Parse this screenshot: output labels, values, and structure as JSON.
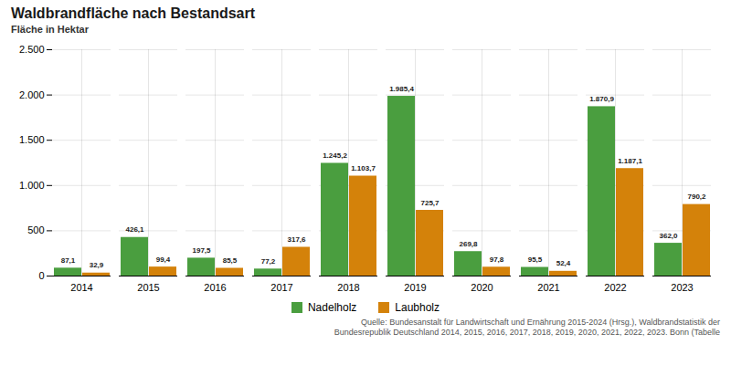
{
  "chart_data": {
    "type": "bar",
    "title": "Waldbrandfläche nach Bestandsart",
    "ylabel": "Fläche in Hektar",
    "caption": "Quelle: Bundesanstalt für Landwirtschaft und Ernährung 2015-2024 (Hrsg.), Waldbrandstatistik der\nBundesrepublik Deutschland 2014, 2015, 2016, 2017, 2018, 2019, 2020, 2021, 2022, 2023. Bonn (Tabelle",
    "categories": [
      2014,
      2015,
      2016,
      2017,
      2018,
      2019,
      2020,
      2021,
      2022,
      2023
    ],
    "series": [
      {
        "name": "Nadelholz",
        "color": "#4a9e3f",
        "values": [
          87.1,
          426.1,
          197.5,
          77.2,
          1245.2,
          1985.4,
          269.8,
          95.5,
          1870.9,
          362.0
        ],
        "value_labels": [
          "87,1",
          "426,1",
          "197,5",
          "77,2",
          "1.245,2",
          "1.985,4",
          "269,8",
          "95,5",
          "1.870,9",
          "362,0"
        ]
      },
      {
        "name": "Laubholz",
        "color": "#d4820a",
        "values": [
          32.9,
          99.4,
          85.5,
          317.6,
          1103.7,
          725.7,
          97.8,
          52.4,
          1187.1,
          790.2
        ],
        "value_labels": [
          "32,9",
          "99,4",
          "85,5",
          "317,6",
          "1.103,7",
          "725,7",
          "97,8",
          "52,4",
          "1.187,1",
          "790,2"
        ]
      }
    ],
    "ylim": [
      0,
      2500
    ],
    "yticks": [
      0,
      500,
      {
        "value": 1000,
        "label": "1.000"
      },
      {
        "value": 1500,
        "label": "1.500"
      },
      {
        "value": 2000,
        "label": "2.000"
      },
      {
        "value": 2500,
        "label": "2.500"
      }
    ],
    "grid": true,
    "legend": "bottom",
    "data_labels": true
  }
}
